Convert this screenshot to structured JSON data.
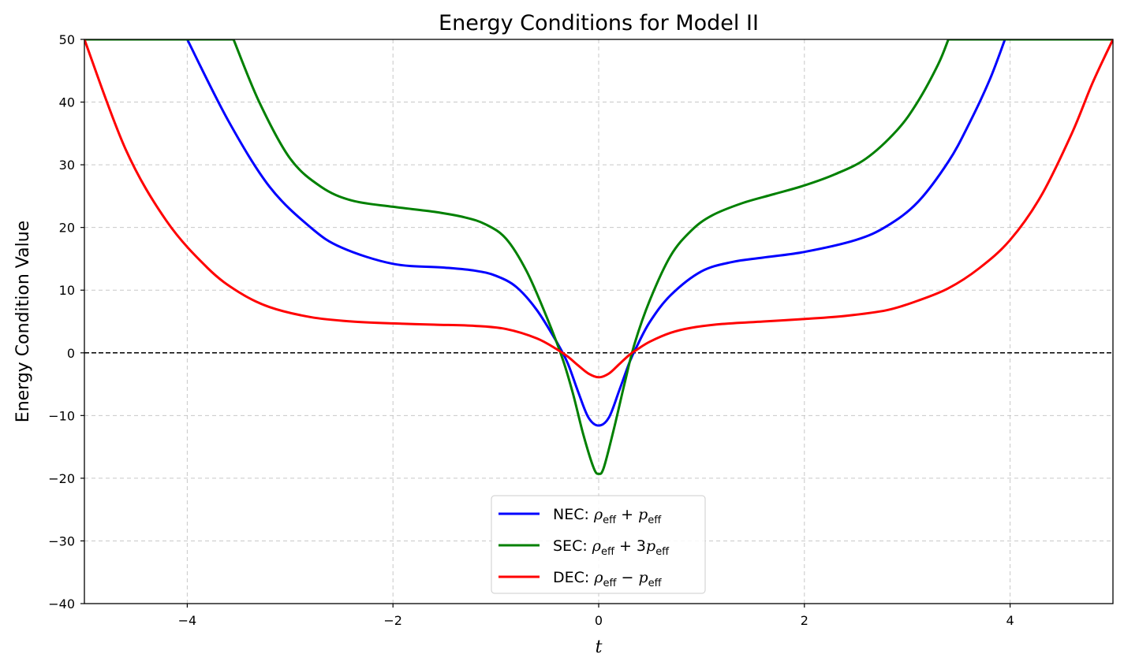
{
  "chart_data": {
    "type": "line",
    "title": "Energy Conditions for Model II",
    "xlabel": "t",
    "ylabel": "Energy Condition Value",
    "xlim": [
      -5,
      5
    ],
    "ylim": [
      -40,
      50
    ],
    "grid": true,
    "legend_position": "lower-center",
    "xticks": [
      -4,
      -2,
      0,
      2,
      4
    ],
    "xtick_labels": [
      "−4",
      "−2",
      "0",
      "2",
      "4"
    ],
    "yticks": [
      -40,
      -30,
      -20,
      -10,
      0,
      10,
      20,
      30,
      40,
      50
    ],
    "ytick_labels": [
      "−40",
      "−30",
      "−20",
      "−10",
      "0",
      "10",
      "20",
      "30",
      "40",
      "50"
    ],
    "reference_line": {
      "y": 0,
      "style": "dashed",
      "color": "#000000"
    },
    "series": [
      {
        "name": "NEC",
        "legend_label": "NEC: ρeff + peff",
        "legend_prefix": "NEC: ",
        "legend_coef": "",
        "color": "#0000ff",
        "x": [
          -4.0,
          -3.6,
          -3.2,
          -2.8,
          -2.5,
          -2.0,
          -1.5,
          -1.2,
          -1.0,
          -0.8,
          -0.6,
          -0.4,
          -0.3,
          -0.2,
          -0.1,
          0.0,
          0.1,
          0.2,
          0.3,
          0.37,
          0.5,
          0.7,
          1.0,
          1.3,
          1.6,
          2.0,
          2.5,
          2.8,
          3.1,
          3.4,
          3.6,
          3.8,
          3.95
        ],
        "y": [
          50,
          37,
          26.5,
          20,
          16.8,
          14.2,
          13.6,
          13.1,
          12.3,
          10.5,
          6.8,
          1.5,
          -1.7,
          -6.2,
          -10.3,
          -11.6,
          -10.3,
          -6.0,
          -1.5,
          1.0,
          5.0,
          9.2,
          13.0,
          14.5,
          15.2,
          16.1,
          18.0,
          20.2,
          24.0,
          30.5,
          36.5,
          43.5,
          50
        ]
      },
      {
        "name": "SEC",
        "legend_label": "SEC: ρeff + 3peff",
        "legend_prefix": "SEC: ",
        "legend_coef": "3",
        "color": "#008000",
        "x": [
          -3.55,
          -3.3,
          -3.0,
          -2.7,
          -2.4,
          -2.0,
          -1.6,
          -1.3,
          -1.1,
          -0.9,
          -0.7,
          -0.5,
          -0.35,
          -0.25,
          -0.15,
          -0.05,
          0.0,
          0.05,
          0.15,
          0.25,
          0.35,
          0.5,
          0.7,
          0.9,
          1.1,
          1.4,
          1.7,
          2.0,
          2.3,
          2.6,
          2.9,
          3.1,
          3.3,
          3.4
        ],
        "y": [
          50,
          40,
          31,
          26.5,
          24.3,
          23.3,
          22.5,
          21.6,
          20.5,
          18.2,
          13.0,
          5.5,
          -1.0,
          -6.5,
          -13.0,
          -18.3,
          -19.3,
          -18.3,
          -12.0,
          -5.0,
          1.5,
          8.5,
          15.5,
          19.5,
          21.9,
          23.9,
          25.3,
          26.7,
          28.5,
          31.0,
          35.5,
          40.0,
          46.0,
          50
        ]
      },
      {
        "name": "DEC",
        "legend_label": "DEC: ρeff − peff",
        "legend_prefix": "DEC: ",
        "legend_coef": "",
        "color": "#ff0000",
        "x": [
          -5.0,
          -4.6,
          -4.2,
          -3.8,
          -3.5,
          -3.2,
          -2.8,
          -2.4,
          -2.0,
          -1.6,
          -1.2,
          -0.9,
          -0.6,
          -0.4,
          -0.3,
          -0.2,
          -0.1,
          0.0,
          0.1,
          0.2,
          0.3,
          0.37,
          0.5,
          0.7,
          0.9,
          1.2,
          1.6,
          2.0,
          2.4,
          2.8,
          3.1,
          3.4,
          3.7,
          4.0,
          4.3,
          4.6,
          4.8,
          5.0
        ],
        "y": [
          50,
          32.5,
          21,
          13.5,
          9.7,
          7.3,
          5.7,
          5.0,
          4.7,
          4.5,
          4.3,
          3.8,
          2.3,
          0.5,
          -0.6,
          -2.0,
          -3.3,
          -3.9,
          -3.3,
          -1.8,
          -0.3,
          0.5,
          1.8,
          3.2,
          4.0,
          4.6,
          5.0,
          5.4,
          5.9,
          6.8,
          8.3,
          10.3,
          13.5,
          18.0,
          25.0,
          35.0,
          43.0,
          50
        ]
      }
    ],
    "legend_symbols": {
      "rho": "ρ",
      "p": "p",
      "sub": "eff",
      "plus": "+",
      "minus": "−"
    }
  }
}
